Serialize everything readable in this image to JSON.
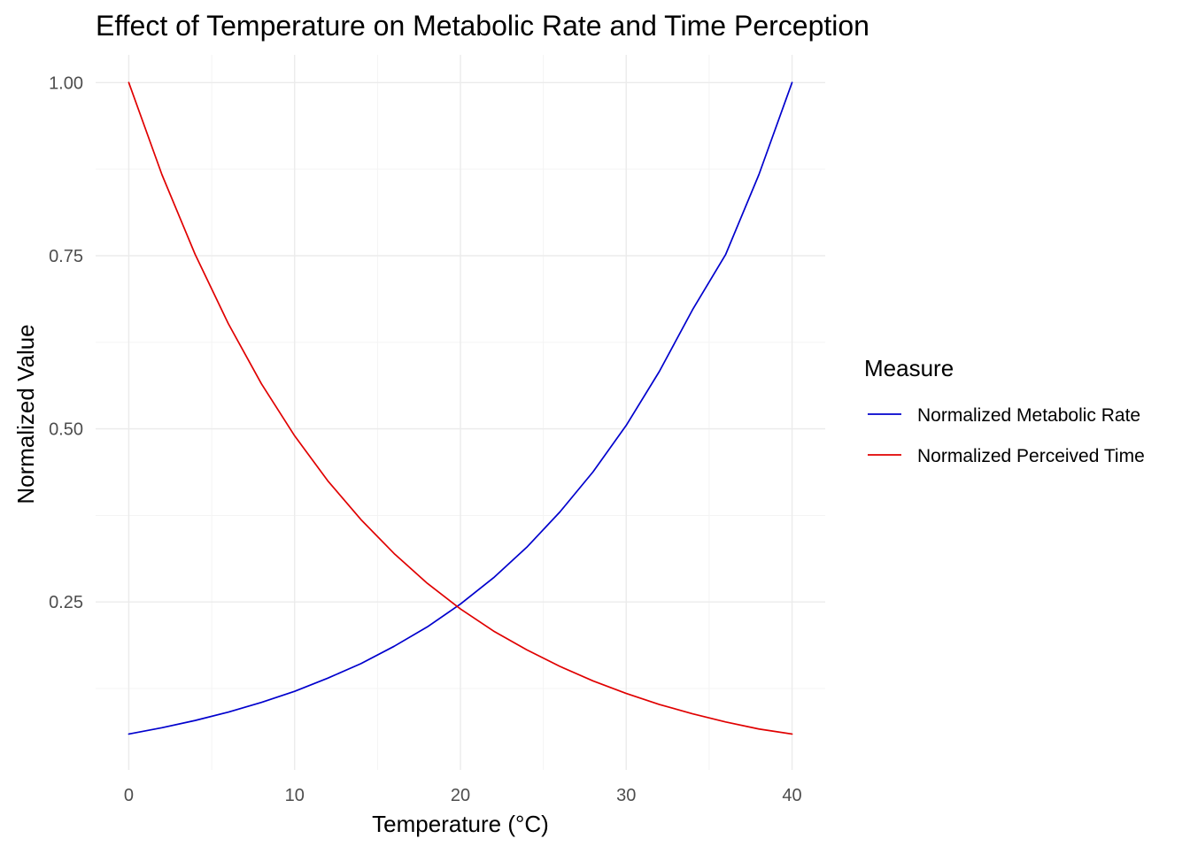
{
  "chart_data": {
    "type": "line",
    "title": "Effect of Temperature on Metabolic Rate and Time Perception",
    "xlabel": "Temperature (°C)",
    "ylabel": "Normalized Value",
    "xlim": [
      -2,
      42
    ],
    "ylim": [
      0.0075,
      1.04
    ],
    "x_ticks": [
      0,
      10,
      20,
      30,
      40
    ],
    "x_tick_labels": [
      "0",
      "10",
      "20",
      "30",
      "40"
    ],
    "y_ticks": [
      0.25,
      0.5,
      0.75,
      1.0
    ],
    "y_tick_labels": [
      "0.25",
      "0.50",
      "0.75",
      "1.00"
    ],
    "grid": true,
    "legend": {
      "title": "Measure",
      "position": "right"
    },
    "x": [
      0,
      2,
      4,
      6,
      8,
      10,
      12,
      14,
      16,
      18,
      20,
      22,
      24,
      26,
      28,
      30,
      32,
      34,
      36,
      38,
      40
    ],
    "series": [
      {
        "name": "Normalized Metabolic Rate",
        "color": "#0000cd",
        "values": [
          0.0593,
          0.0684,
          0.0789,
          0.091,
          0.105,
          0.121,
          0.14,
          0.161,
          0.186,
          0.214,
          0.247,
          0.285,
          0.329,
          0.38,
          0.438,
          0.505,
          0.583,
          0.672,
          0.752,
          0.867,
          1.0
        ]
      },
      {
        "name": "Normalized Perceived Time",
        "color": "#e00000",
        "values": [
          1.0,
          0.867,
          0.752,
          0.652,
          0.565,
          0.49,
          0.425,
          0.369,
          0.32,
          0.277,
          0.24,
          0.208,
          0.181,
          0.157,
          0.136,
          0.118,
          0.102,
          0.0886,
          0.0768,
          0.0666,
          0.0593
        ]
      }
    ]
  }
}
